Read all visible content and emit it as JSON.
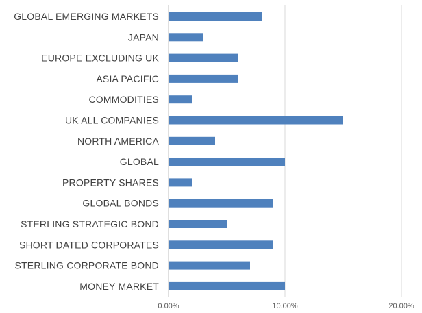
{
  "chart_data": {
    "type": "bar",
    "orientation": "horizontal",
    "categories": [
      "GLOBAL EMERGING MARKETS",
      "JAPAN",
      "EUROPE EXCLUDING UK",
      "ASIA PACIFIC",
      "COMMODITIES",
      "UK ALL COMPANIES",
      "NORTH AMERICA",
      "GLOBAL",
      "PROPERTY SHARES",
      "GLOBAL BONDS",
      "STERLING STRATEGIC BOND",
      "SHORT DATED CORPORATES",
      "STERLING CORPORATE BOND",
      "MONEY MARKET"
    ],
    "values": [
      8,
      3,
      6,
      6,
      2,
      15,
      4,
      10,
      2,
      9,
      5,
      9,
      7,
      10
    ],
    "value_unit": "percent",
    "xlim": [
      0,
      20
    ],
    "x_ticks": [
      0,
      10,
      20
    ],
    "x_tick_labels": [
      "0.00%",
      "10.00%",
      "20.00%"
    ],
    "title": "",
    "xlabel": "",
    "ylabel": "",
    "grid": "vertical gridlines",
    "legend": "none",
    "colors": {
      "bar": "#4F81BD",
      "grid": "#D9D9D9",
      "axis": "#BFBFBF",
      "label": "#404040",
      "tick": "#595959"
    }
  }
}
